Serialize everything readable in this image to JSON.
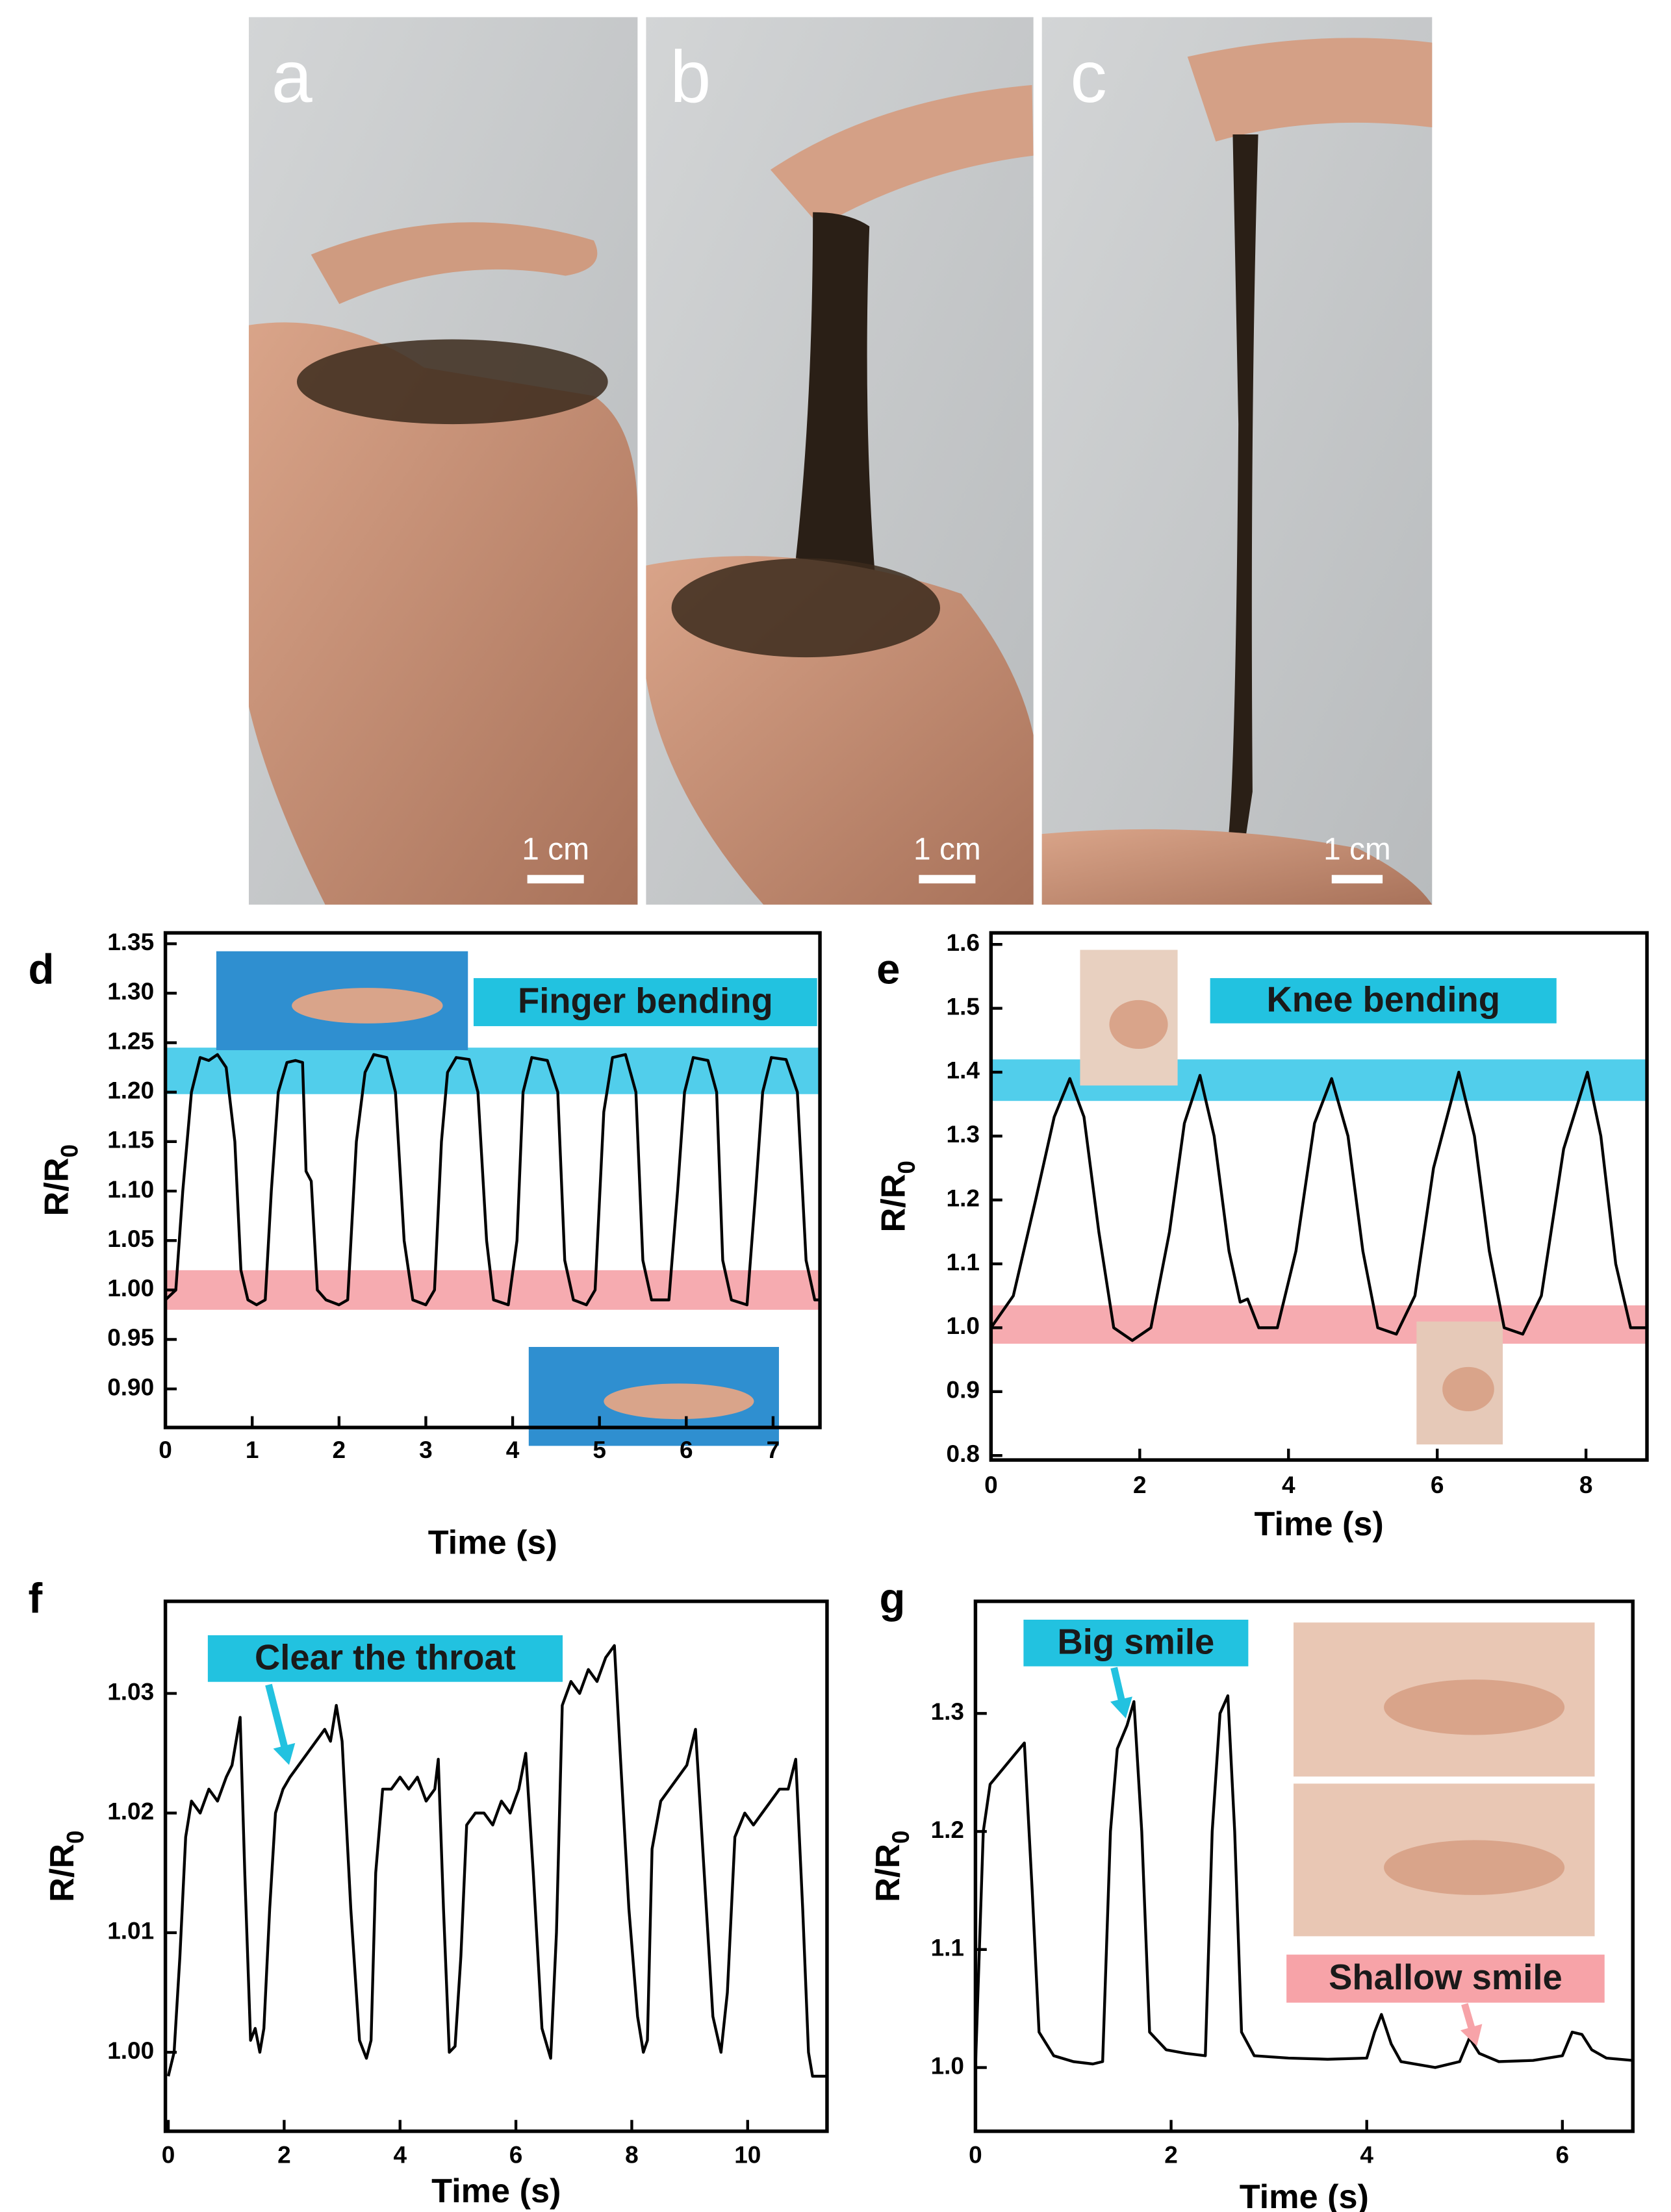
{
  "photos": [
    {
      "label": "a",
      "scale_bar": "1 cm"
    },
    {
      "label": "b",
      "scale_bar": "1 cm"
    },
    {
      "label": "c",
      "scale_bar": "1 cm"
    }
  ],
  "chart_data": [
    {
      "type": "line",
      "panel": "d",
      "xlabel": "Time (s)",
      "ylabel": "R/R",
      "ylabel_subscript": "0",
      "xlim": [
        0,
        7.54
      ],
      "ylim": [
        0.861,
        1.361
      ],
      "xticks": [
        0,
        1,
        2,
        3,
        4,
        5,
        6,
        7
      ],
      "yticks": [
        1.35,
        {
          "value": 1.3,
          "label": "1.30"
        },
        1.25,
        {
          "value": 1.2,
          "label": "1.20"
        },
        1.15,
        {
          "value": 1.1,
          "label": "1.10"
        },
        1.05,
        {
          "value": 1,
          "label": "1.00"
        },
        0.95,
        {
          "value": 0.9,
          "label": "0.90"
        }
      ],
      "bands": [
        {
          "range": [
            1.198,
            1.245
          ],
          "color": "#33c6e8"
        },
        {
          "range": [
            0.98,
            1.02
          ],
          "color": "#f59ca2"
        }
      ],
      "annotations": [
        {
          "text": "Finger bending",
          "color": "#22c2e0"
        }
      ],
      "x": [
        0,
        0.12,
        0.2,
        0.3,
        0.4,
        0.5,
        0.6,
        0.7,
        0.8,
        0.87,
        0.95,
        1.05,
        1.15,
        1.22,
        1.3,
        1.4,
        1.5,
        1.58,
        1.62,
        1.68,
        1.75,
        1.85,
        2.0,
        2.1,
        2.2,
        2.3,
        2.4,
        2.55,
        2.65,
        2.75,
        2.85,
        3.0,
        3.1,
        3.18,
        3.25,
        3.35,
        3.5,
        3.6,
        3.7,
        3.78,
        3.95,
        4.05,
        4.12,
        4.22,
        4.4,
        4.52,
        4.6,
        4.7,
        4.85,
        4.95,
        5.05,
        5.15,
        5.3,
        5.42,
        5.5,
        5.6,
        5.8,
        5.9,
        5.98,
        6.08,
        6.25,
        6.35,
        6.42,
        6.52,
        6.7,
        6.8,
        6.88,
        6.98,
        7.15,
        7.28,
        7.38,
        7.48,
        7.54
      ],
      "series": [
        {
          "color": "#000000",
          "values": [
            0.99,
            1.0,
            1.1,
            1.2,
            1.235,
            1.232,
            1.238,
            1.225,
            1.15,
            1.02,
            0.99,
            0.985,
            0.99,
            1.1,
            1.2,
            1.23,
            1.232,
            1.23,
            1.12,
            1.11,
            1.0,
            0.99,
            0.985,
            0.99,
            1.15,
            1.22,
            1.238,
            1.235,
            1.2,
            1.05,
            0.99,
            0.985,
            1.0,
            1.15,
            1.22,
            1.235,
            1.233,
            1.2,
            1.05,
            0.99,
            0.985,
            1.05,
            1.2,
            1.235,
            1.232,
            1.2,
            1.03,
            0.99,
            0.985,
            1.0,
            1.18,
            1.235,
            1.238,
            1.2,
            1.03,
            0.99,
            0.99,
            1.1,
            1.2,
            1.235,
            1.232,
            1.2,
            1.03,
            0.99,
            0.985,
            1.1,
            1.2,
            1.235,
            1.233,
            1.2,
            1.03,
            0.99,
            0.99
          ]
        }
      ]
    },
    {
      "type": "line",
      "panel": "e",
      "xlabel": "Time (s)",
      "ylabel": "R/R",
      "ylabel_subscript": "0",
      "xlim": [
        0,
        8.82
      ],
      "ylim": [
        0.793,
        1.618
      ],
      "xticks": [
        0,
        2,
        4,
        6,
        8
      ],
      "yticks": [
        1.6,
        1.5,
        1.4,
        1.3,
        1.2,
        1.1,
        {
          "value": 1,
          "label": "1.0"
        },
        0.9,
        0.8
      ],
      "bands": [
        {
          "range": [
            1.355,
            1.42
          ],
          "color": "#33c6e8"
        },
        {
          "range": [
            0.975,
            1.035
          ],
          "color": "#f59ca2"
        }
      ],
      "annotations": [
        {
          "text": "Knee bending",
          "color": "#22c2e0"
        }
      ],
      "x": [
        0,
        0.3,
        0.6,
        0.85,
        1.06,
        1.25,
        1.45,
        1.65,
        1.9,
        2.15,
        2.4,
        2.6,
        2.81,
        3.0,
        3.2,
        3.35,
        3.45,
        3.6,
        3.85,
        4.1,
        4.35,
        4.58,
        4.8,
        5.0,
        5.2,
        5.45,
        5.7,
        5.95,
        6.29,
        6.5,
        6.7,
        6.9,
        7.15,
        7.4,
        7.7,
        8.02,
        8.2,
        8.4,
        8.6,
        8.82
      ],
      "series": [
        {
          "color": "#000000",
          "values": [
            1.0,
            1.05,
            1.2,
            1.33,
            1.39,
            1.33,
            1.15,
            1.0,
            0.98,
            1.0,
            1.15,
            1.32,
            1.395,
            1.3,
            1.12,
            1.04,
            1.045,
            1.0,
            1.0,
            1.12,
            1.32,
            1.39,
            1.3,
            1.12,
            1.0,
            0.99,
            1.05,
            1.25,
            1.4,
            1.3,
            1.12,
            1.0,
            0.99,
            1.05,
            1.28,
            1.4,
            1.3,
            1.1,
            1.0,
            1.0
          ]
        }
      ]
    },
    {
      "type": "line",
      "panel": "f",
      "xlabel": "Time (s)",
      "ylabel": "R/R",
      "ylabel_subscript": "0",
      "xlim": [
        -0.05,
        11.37
      ],
      "ylim": [
        0.9934,
        1.0377
      ],
      "xticks": [
        0,
        2,
        4,
        6,
        8,
        10
      ],
      "yticks": [
        1.03,
        1.02,
        1.01,
        {
          "value": 1,
          "label": "1.00"
        }
      ],
      "bands": [],
      "annotations": [
        {
          "text": "Clear the throat",
          "color": "#22c2e0"
        }
      ],
      "x": [
        0,
        0.1,
        0.2,
        0.3,
        0.4,
        0.55,
        0.7,
        0.85,
        1.0,
        1.1,
        1.24,
        1.32,
        1.42,
        1.5,
        1.58,
        1.65,
        1.75,
        1.85,
        1.98,
        2.1,
        2.25,
        2.4,
        2.55,
        2.7,
        2.8,
        2.9,
        3.0,
        3.15,
        3.3,
        3.42,
        3.5,
        3.58,
        3.7,
        3.85,
        4.0,
        4.15,
        4.3,
        4.45,
        4.6,
        4.66,
        4.75,
        4.85,
        4.95,
        5.05,
        5.15,
        5.3,
        5.45,
        5.6,
        5.75,
        5.9,
        6.05,
        6.17,
        6.3,
        6.45,
        6.6,
        6.7,
        6.8,
        6.95,
        7.1,
        7.25,
        7.4,
        7.55,
        7.7,
        7.8,
        7.95,
        8.1,
        8.2,
        8.27,
        8.35,
        8.5,
        8.65,
        8.8,
        8.95,
        9.1,
        9.25,
        9.4,
        9.54,
        9.65,
        9.78,
        9.95,
        10.1,
        10.25,
        10.4,
        10.55,
        10.7,
        10.83,
        10.95,
        11.05,
        11.12,
        11.25,
        11.37
      ],
      "series": [
        {
          "color": "#000000",
          "values": [
            0.998,
            1.0,
            1.008,
            1.018,
            1.021,
            1.02,
            1.022,
            1.021,
            1.023,
            1.024,
            1.028,
            1.015,
            1.001,
            1.002,
            1.0,
            1.002,
            1.012,
            1.02,
            1.022,
            1.023,
            1.024,
            1.025,
            1.026,
            1.027,
            1.026,
            1.029,
            1.026,
            1.012,
            1.001,
            0.9995,
            1.001,
            1.015,
            1.022,
            1.022,
            1.023,
            1.022,
            1.023,
            1.021,
            1.022,
            1.0245,
            1.012,
            1.0,
            1.0005,
            1.008,
            1.019,
            1.02,
            1.02,
            1.019,
            1.021,
            1.02,
            1.022,
            1.025,
            1.015,
            1.002,
            0.9995,
            1.01,
            1.029,
            1.031,
            1.03,
            1.032,
            1.031,
            1.033,
            1.034,
            1.025,
            1.012,
            1.003,
            1.0,
            1.001,
            1.017,
            1.021,
            1.022,
            1.023,
            1.024,
            1.027,
            1.015,
            1.003,
            1.0,
            1.005,
            1.018,
            1.02,
            1.019,
            1.02,
            1.021,
            1.022,
            1.022,
            1.0245,
            1.012,
            1.0,
            0.998,
            0.998,
            0.998
          ]
        }
      ]
    },
    {
      "type": "line",
      "panel": "g",
      "xlabel": "Time (s)",
      "ylabel": "R/R",
      "ylabel_subscript": "0",
      "xlim": [
        0,
        6.72
      ],
      "ylim": [
        0.946,
        1.395
      ],
      "xticks": [
        0,
        2,
        4,
        6
      ],
      "yticks": [
        1.3,
        1.2,
        1.1,
        {
          "value": 1,
          "label": "1.0"
        }
      ],
      "bands": [],
      "annotations": [
        {
          "text": "Big smile",
          "color": "#22c2e0"
        },
        {
          "text": "Shallow smile",
          "color": "#f7a3a8"
        }
      ],
      "x": [
        0,
        0.08,
        0.15,
        0.3,
        0.4,
        0.5,
        0.58,
        0.65,
        0.8,
        1.0,
        1.2,
        1.3,
        1.38,
        1.45,
        1.55,
        1.62,
        1.7,
        1.78,
        1.95,
        2.15,
        2.35,
        2.42,
        2.5,
        2.58,
        2.65,
        2.72,
        2.85,
        3.2,
        3.6,
        4.0,
        4.08,
        4.15,
        4.25,
        4.35,
        4.7,
        4.95,
        5.05,
        5.15,
        5.35,
        5.7,
        6.0,
        6.1,
        6.2,
        6.3,
        6.45,
        6.72
      ],
      "series": [
        {
          "color": "#000000",
          "values": [
            1.0,
            1.2,
            1.24,
            1.255,
            1.265,
            1.275,
            1.15,
            1.03,
            1.01,
            1.005,
            1.003,
            1.005,
            1.2,
            1.27,
            1.29,
            1.31,
            1.2,
            1.03,
            1.015,
            1.012,
            1.01,
            1.2,
            1.3,
            1.315,
            1.2,
            1.03,
            1.01,
            1.008,
            1.007,
            1.008,
            1.03,
            1.045,
            1.02,
            1.005,
            1.0,
            1.005,
            1.025,
            1.012,
            1.005,
            1.006,
            1.01,
            1.03,
            1.028,
            1.015,
            1.008,
            1.006
          ]
        }
      ]
    }
  ]
}
